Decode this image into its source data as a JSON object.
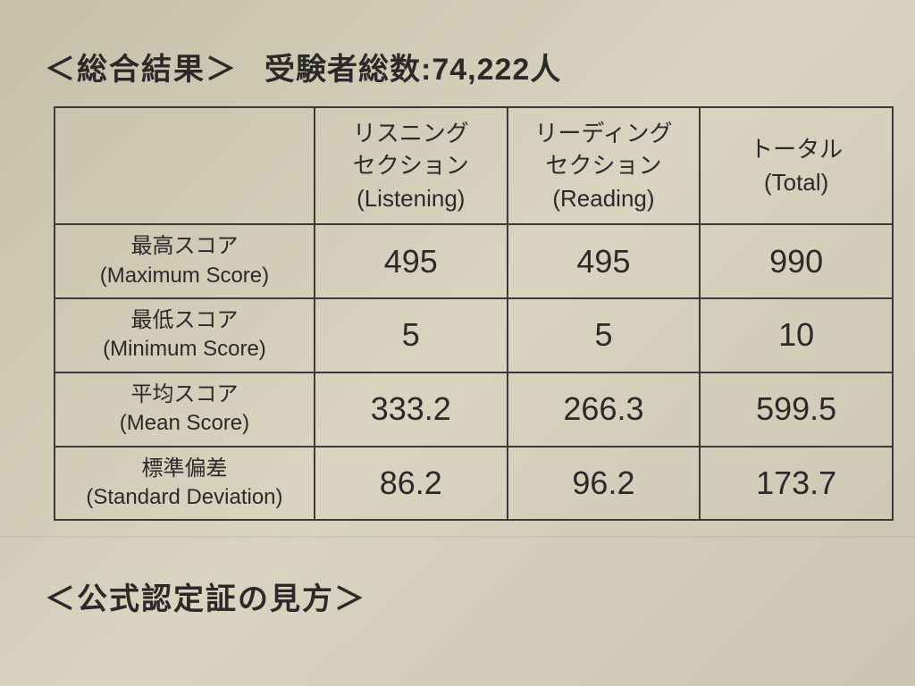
{
  "header": {
    "title": "＜総合結果＞",
    "subtitle_prefix": "受験者総数:",
    "subtitle_count": "74,222",
    "subtitle_suffix": "人"
  },
  "table": {
    "columns": [
      {
        "jp": "リスニング\nセクション",
        "en": "(Listening)"
      },
      {
        "jp": "リーディング\nセクション",
        "en": "(Reading)"
      },
      {
        "jp": "トータル",
        "en": "(Total)"
      }
    ],
    "rows": [
      {
        "label_jp": "最高スコア",
        "label_en": "(Maximum Score)",
        "values": [
          "495",
          "495",
          "990"
        ]
      },
      {
        "label_jp": "最低スコア",
        "label_en": "(Minimum Score)",
        "values": [
          "5",
          "5",
          "10"
        ]
      },
      {
        "label_jp": "平均スコア",
        "label_en": "(Mean Score)",
        "values": [
          "333.2",
          "266.3",
          "599.5"
        ]
      },
      {
        "label_jp": "標準偏差",
        "label_en": "(Standard Deviation)",
        "values": [
          "86.2",
          "96.2",
          "173.7"
        ]
      }
    ]
  },
  "footer": {
    "title": "＜公式認定証の見方＞"
  },
  "style": {
    "text_color": "#2a2a2a",
    "border_color": "#3a3a3a",
    "background": "#d0ccb5"
  }
}
